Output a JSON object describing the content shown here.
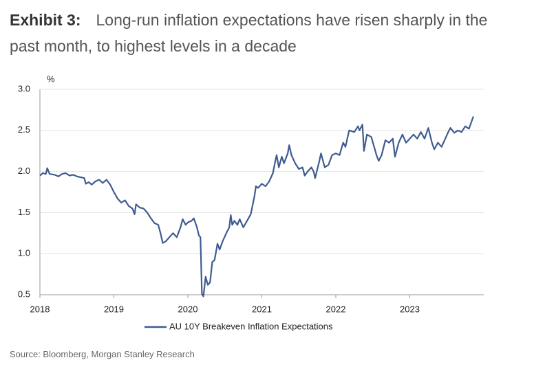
{
  "exhibit": "Exhibit 3:",
  "source": "Source: Bloomberg, Morgan Stanley Research",
  "chart_data": {
    "type": "line",
    "title": "Long-run inflation expectations have risen sharply in the past month, to highest levels in a decade",
    "y_label": "%",
    "x": [
      2018.0,
      2018.04,
      2018.08,
      2018.1,
      2018.13,
      2018.2,
      2018.25,
      2018.3,
      2018.35,
      2018.4,
      2018.45,
      2018.5,
      2018.55,
      2018.6,
      2018.62,
      2018.66,
      2018.7,
      2018.75,
      2018.8,
      2018.85,
      2018.9,
      2018.95,
      2019.0,
      2019.05,
      2019.1,
      2019.15,
      2019.2,
      2019.25,
      2019.28,
      2019.3,
      2019.35,
      2019.4,
      2019.45,
      2019.5,
      2019.55,
      2019.6,
      2019.63,
      2019.66,
      2019.7,
      2019.75,
      2019.8,
      2019.85,
      2019.9,
      2019.93,
      2019.97,
      2020.0,
      2020.05,
      2020.08,
      2020.12,
      2020.15,
      2020.17,
      2020.19,
      2020.21,
      2020.24,
      2020.27,
      2020.3,
      2020.33,
      2020.36,
      2020.4,
      2020.43,
      2020.47,
      2020.52,
      2020.56,
      2020.58,
      2020.6,
      2020.63,
      2020.67,
      2020.7,
      2020.75,
      2020.8,
      2020.85,
      2020.9,
      2020.92,
      2020.95,
      2021.0,
      2021.05,
      2021.1,
      2021.15,
      2021.18,
      2021.2,
      2021.23,
      2021.27,
      2021.3,
      2021.35,
      2021.37,
      2021.4,
      2021.45,
      2021.5,
      2021.55,
      2021.58,
      2021.62,
      2021.67,
      2021.7,
      2021.72,
      2021.77,
      2021.8,
      2021.85,
      2021.9,
      2021.95,
      2022.0,
      2022.05,
      2022.1,
      2022.13,
      2022.18,
      2022.25,
      2022.3,
      2022.32,
      2022.36,
      2022.38,
      2022.42,
      2022.48,
      2022.55,
      2022.58,
      2022.62,
      2022.67,
      2022.72,
      2022.77,
      2022.8,
      2022.85,
      2022.9,
      2022.95,
      2023.0,
      2023.05,
      2023.1,
      2023.15,
      2023.2,
      2023.25,
      2023.3,
      2023.33,
      2023.38,
      2023.43,
      2023.47,
      2023.52,
      2023.55,
      2023.6,
      2023.65,
      2023.7,
      2023.75,
      2023.8,
      2023.86
    ],
    "series": [
      {
        "name": "AU 10Y Breakeven Inflation Expectations",
        "color": "#3f5b8f",
        "values": [
          1.95,
          1.98,
          1.97,
          2.04,
          1.97,
          1.96,
          1.94,
          1.97,
          1.98,
          1.95,
          1.96,
          1.94,
          1.93,
          1.92,
          1.85,
          1.87,
          1.84,
          1.88,
          1.9,
          1.86,
          1.9,
          1.84,
          1.75,
          1.67,
          1.62,
          1.65,
          1.58,
          1.55,
          1.48,
          1.6,
          1.56,
          1.55,
          1.5,
          1.43,
          1.37,
          1.35,
          1.25,
          1.13,
          1.15,
          1.2,
          1.25,
          1.2,
          1.32,
          1.42,
          1.35,
          1.38,
          1.4,
          1.43,
          1.33,
          1.22,
          1.2,
          0.51,
          0.48,
          0.72,
          0.62,
          0.65,
          0.9,
          0.92,
          1.12,
          1.05,
          1.15,
          1.25,
          1.32,
          1.47,
          1.35,
          1.4,
          1.35,
          1.42,
          1.32,
          1.4,
          1.48,
          1.7,
          1.82,
          1.8,
          1.85,
          1.82,
          1.88,
          1.98,
          2.12,
          2.2,
          2.05,
          2.18,
          2.1,
          2.22,
          2.32,
          2.2,
          2.1,
          2.03,
          2.05,
          1.95,
          2.0,
          2.05,
          2.0,
          1.92,
          2.1,
          2.22,
          2.05,
          2.08,
          2.2,
          2.22,
          2.2,
          2.35,
          2.3,
          2.5,
          2.48,
          2.55,
          2.5,
          2.57,
          2.25,
          2.45,
          2.42,
          2.2,
          2.13,
          2.2,
          2.38,
          2.35,
          2.4,
          2.18,
          2.35,
          2.45,
          2.35,
          2.4,
          2.45,
          2.4,
          2.48,
          2.4,
          2.53,
          2.35,
          2.27,
          2.35,
          2.3,
          2.38,
          2.48,
          2.53,
          2.47,
          2.5,
          2.48,
          2.55,
          2.52,
          2.67
        ]
      }
    ],
    "xlim": [
      2018,
      2024
    ],
    "xticks": [
      2018,
      2019,
      2020,
      2021,
      2022,
      2023
    ],
    "ylim": [
      0.5,
      3
    ],
    "yticks": [
      0.5,
      {
        "value": 1,
        "label": "1.0"
      },
      1.5,
      {
        "value": 2,
        "label": "2.0"
      },
      2.5,
      {
        "value": 3,
        "label": "3.0"
      }
    ],
    "grid": true
  }
}
